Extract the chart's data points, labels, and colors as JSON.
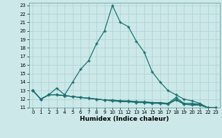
{
  "xlabel": "Humidex (Indice chaleur)",
  "background_color": "#cce8e8",
  "grid_color": "#b0d4d4",
  "line_color": "#1a7070",
  "xlim": [
    -0.5,
    23.5
  ],
  "ylim": [
    11,
    23.3
  ],
  "xticks": [
    0,
    1,
    2,
    3,
    4,
    5,
    6,
    7,
    8,
    9,
    10,
    11,
    12,
    13,
    14,
    15,
    16,
    17,
    18,
    19,
    20,
    21,
    22,
    23
  ],
  "yticks": [
    11,
    12,
    13,
    14,
    15,
    16,
    17,
    18,
    19,
    20,
    21,
    22,
    23
  ],
  "series": [
    {
      "x": [
        0,
        1,
        2,
        3,
        4,
        5,
        6,
        7,
        8,
        9,
        10,
        11,
        12,
        13,
        14,
        15,
        16,
        17,
        18,
        19,
        20,
        21,
        22,
        23
      ],
      "y": [
        13,
        12,
        12.5,
        13.3,
        12.5,
        14,
        15.5,
        16.5,
        18.5,
        20,
        23,
        21,
        20.5,
        18.8,
        17.5,
        15.2,
        14,
        13,
        12.5,
        12,
        11.8,
        11.5,
        11,
        11
      ]
    },
    {
      "x": [
        0,
        1,
        2,
        3,
        4,
        5,
        6,
        7,
        8,
        9,
        10,
        11,
        12,
        13,
        14,
        15,
        16,
        17,
        18,
        19,
        20,
        21,
        22,
        23
      ],
      "y": [
        13,
        12,
        12.5,
        12.5,
        12.4,
        12.3,
        12.2,
        12.1,
        12.0,
        11.9,
        11.9,
        11.8,
        11.8,
        11.7,
        11.7,
        11.6,
        11.6,
        11.5,
        12.2,
        11.5,
        11.5,
        11.4,
        11,
        11
      ]
    },
    {
      "x": [
        0,
        1,
        2,
        3,
        4,
        5,
        6,
        7,
        8,
        9,
        10,
        11,
        12,
        13,
        14,
        15,
        16,
        17,
        18,
        19,
        20,
        21,
        22,
        23
      ],
      "y": [
        13,
        12,
        12.5,
        12.5,
        12.4,
        12.3,
        12.2,
        12.1,
        12.0,
        11.9,
        11.8,
        11.8,
        11.7,
        11.7,
        11.6,
        11.6,
        11.5,
        11.5,
        12.0,
        11.4,
        11.4,
        11.3,
        11,
        11
      ]
    },
    {
      "x": [
        0,
        1,
        2,
        3,
        4,
        5,
        6,
        7,
        8,
        9,
        10,
        11,
        12,
        13,
        14,
        15,
        16,
        17,
        18,
        19,
        20,
        21,
        22,
        23
      ],
      "y": [
        13,
        12,
        12.5,
        12.5,
        12.4,
        12.3,
        12.2,
        12.1,
        12.0,
        11.9,
        11.8,
        11.7,
        11.7,
        11.6,
        11.6,
        11.5,
        11.5,
        11.4,
        11.9,
        11.4,
        11.3,
        11.3,
        11,
        11
      ]
    }
  ],
  "marker": "+",
  "markersize": 3.5,
  "markeredgewidth": 1.0,
  "linewidth": 0.9,
  "tick_fontsize": 5.0,
  "xlabel_fontsize": 6.5
}
